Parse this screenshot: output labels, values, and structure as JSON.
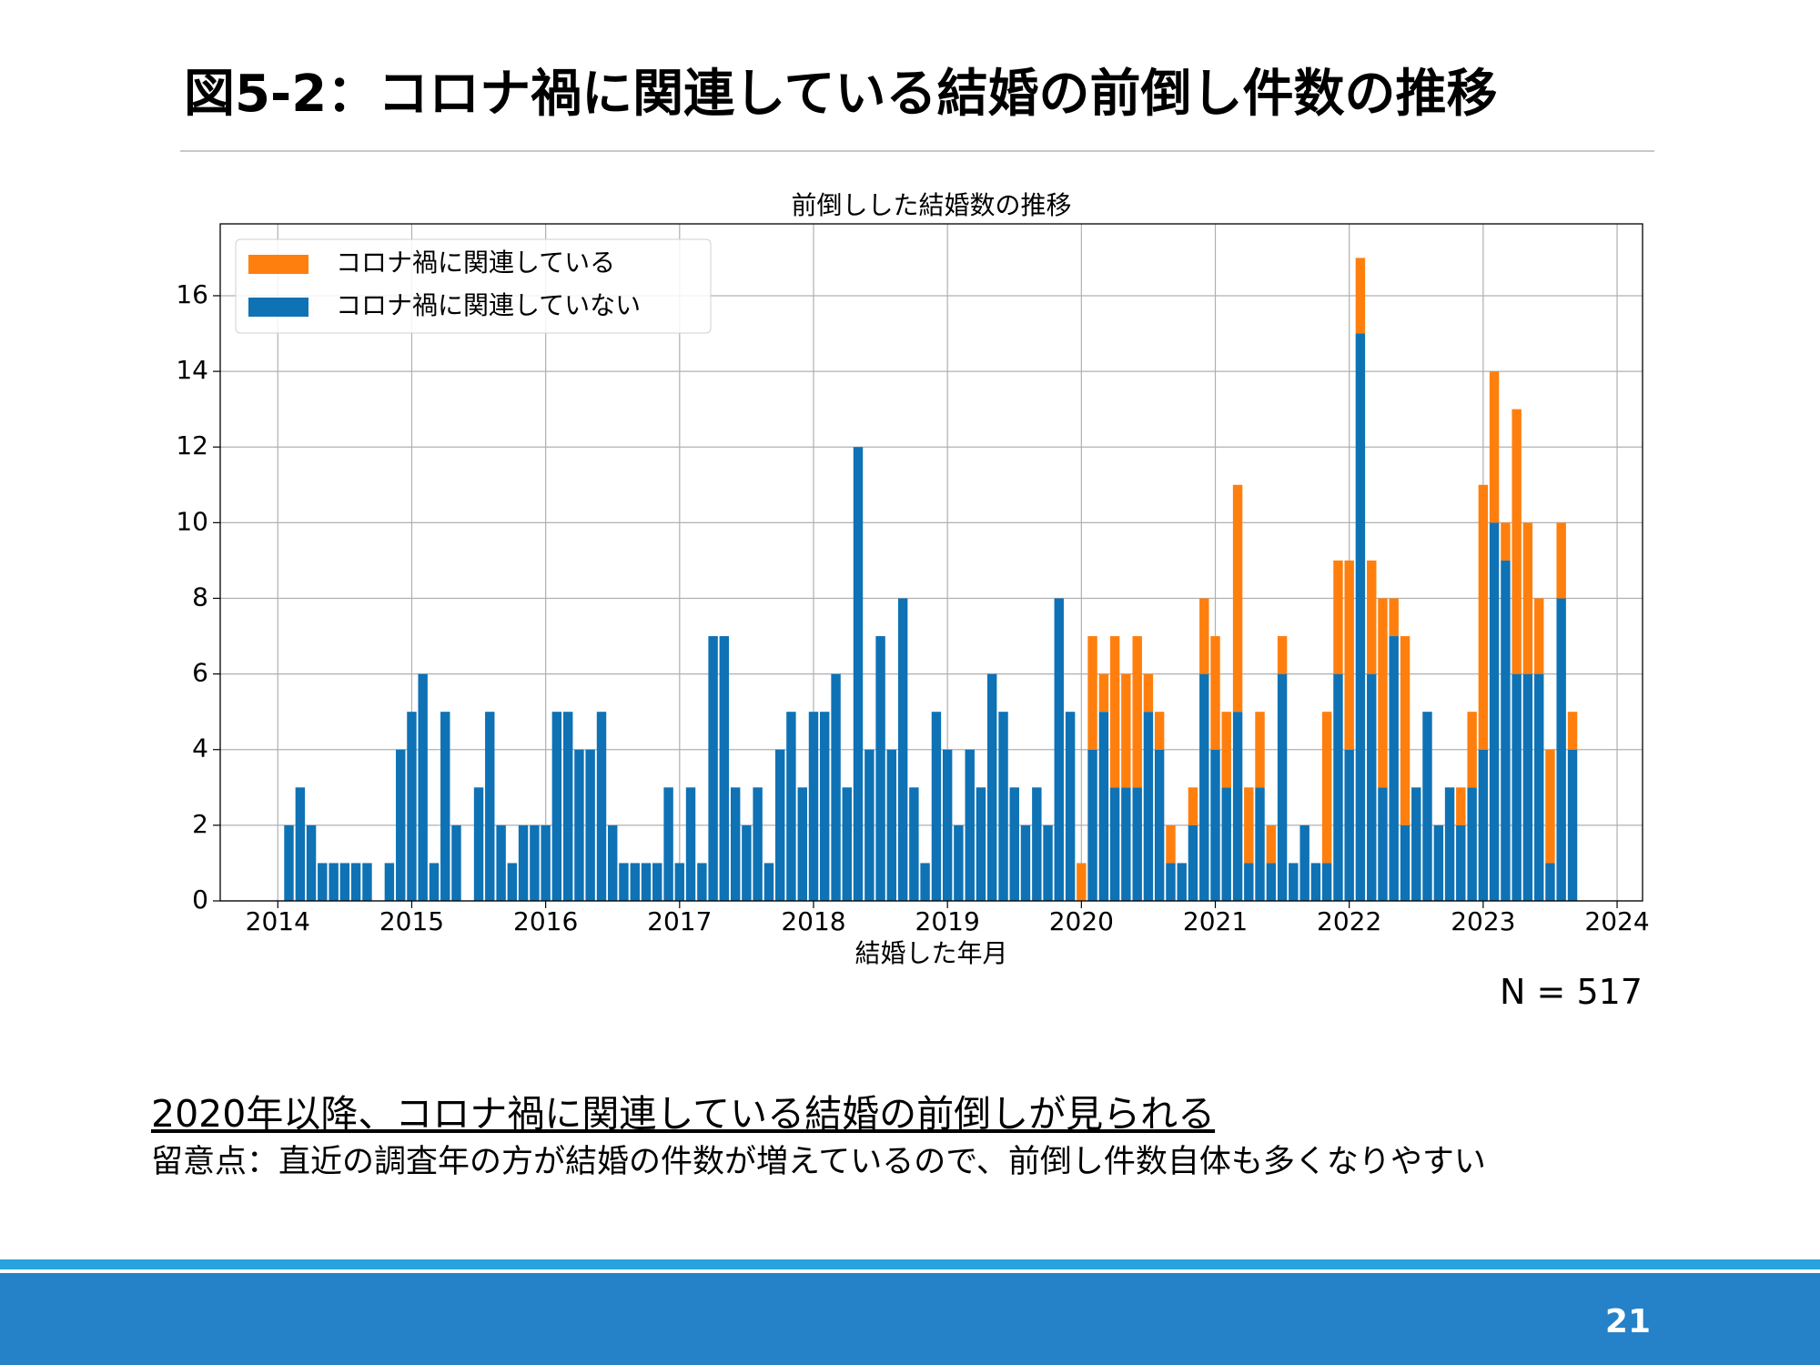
{
  "slide": {
    "title": "図5-2：コロナ禍に関連している結婚の前倒し件数の推移",
    "note": "N = 517",
    "finding": "2020年以降、コロナ禍に関連している結婚の前倒しが見られる",
    "caveat": "留意点：直近の調査年の方が結婚の件数が増えているので、前倒し件数自体も多くなりやすい",
    "page_number": "21"
  },
  "chart_data": {
    "type": "stacked_bar",
    "title": "前倒しした結婚数の推移",
    "x_label": "結婚した年月",
    "x": [
      2014.083,
      2014.167,
      2014.25,
      2014.333,
      2014.417,
      2014.5,
      2014.583,
      2014.667,
      2014.75,
      2014.833,
      2014.917,
      2015,
      2015.083,
      2015.167,
      2015.25,
      2015.333,
      2015.417,
      2015.5,
      2015.583,
      2015.667,
      2015.75,
      2015.833,
      2015.917,
      2016,
      2016.083,
      2016.167,
      2016.25,
      2016.333,
      2016.417,
      2016.5,
      2016.583,
      2016.667,
      2016.75,
      2016.833,
      2016.917,
      2017,
      2017.083,
      2017.167,
      2017.25,
      2017.333,
      2017.417,
      2017.5,
      2017.583,
      2017.667,
      2017.75,
      2017.833,
      2017.917,
      2018,
      2018.083,
      2018.167,
      2018.25,
      2018.333,
      2018.417,
      2018.5,
      2018.583,
      2018.667,
      2018.75,
      2018.833,
      2018.917,
      2019,
      2019.083,
      2019.167,
      2019.25,
      2019.333,
      2019.417,
      2019.5,
      2019.583,
      2019.667,
      2019.75,
      2019.833,
      2019.917,
      2020,
      2020.083,
      2020.167,
      2020.25,
      2020.333,
      2020.417,
      2020.5,
      2020.583,
      2020.667,
      2020.75,
      2020.833,
      2020.917,
      2021,
      2021.083,
      2021.167,
      2021.25,
      2021.333,
      2021.417,
      2021.5,
      2021.583,
      2021.667,
      2021.75,
      2021.833,
      2021.917,
      2022,
      2022.083,
      2022.167,
      2022.25,
      2022.333,
      2022.417,
      2022.5,
      2022.583,
      2022.667,
      2022.75,
      2022.833,
      2022.917,
      2023,
      2023.083,
      2023.167,
      2023.25,
      2023.333,
      2023.417,
      2023.5,
      2023.583,
      2023.667
    ],
    "series": [
      {
        "name": "コロナ禍に関連していない",
        "color": "#0e72b5",
        "values": [
          2,
          3,
          2,
          1,
          1,
          1,
          1,
          1,
          0,
          1,
          4,
          5,
          6,
          1,
          5,
          2,
          0,
          3,
          5,
          2,
          1,
          2,
          2,
          2,
          5,
          5,
          4,
          4,
          5,
          2,
          1,
          1,
          1,
          1,
          3,
          1,
          3,
          1,
          7,
          7,
          3,
          2,
          3,
          1,
          4,
          5,
          3,
          5,
          5,
          6,
          3,
          12,
          4,
          7,
          4,
          8,
          3,
          1,
          5,
          4,
          2,
          4,
          3,
          6,
          5,
          3,
          2,
          3,
          2,
          8,
          5,
          0,
          4,
          5,
          3,
          3,
          3,
          5,
          4,
          1,
          1,
          2,
          6,
          4,
          3,
          5,
          1,
          3,
          1,
          6,
          1,
          2,
          1,
          1,
          6,
          4,
          15,
          6,
          3,
          7,
          2,
          3,
          5,
          2,
          3,
          2,
          3,
          4,
          10,
          9,
          6,
          6,
          6,
          1,
          8,
          4
        ]
      },
      {
        "name": "コロナ禍に関連している",
        "color": "#ff7f0e",
        "values": [
          0,
          0,
          0,
          0,
          0,
          0,
          0,
          0,
          0,
          0,
          0,
          0,
          0,
          0,
          0,
          0,
          0,
          0,
          0,
          0,
          0,
          0,
          0,
          0,
          0,
          0,
          0,
          0,
          0,
          0,
          0,
          0,
          0,
          0,
          0,
          0,
          0,
          0,
          0,
          0,
          0,
          0,
          0,
          0,
          0,
          0,
          0,
          0,
          0,
          0,
          0,
          0,
          0,
          0,
          0,
          0,
          0,
          0,
          0,
          0,
          0,
          0,
          0,
          0,
          0,
          0,
          0,
          0,
          0,
          0,
          0,
          1,
          3,
          1,
          4,
          3,
          4,
          1,
          1,
          1,
          0,
          1,
          2,
          3,
          2,
          6,
          2,
          2,
          1,
          1,
          0,
          0,
          0,
          4,
          3,
          5,
          2,
          3,
          5,
          1,
          5,
          0,
          0,
          0,
          0,
          1,
          2,
          7,
          4,
          1,
          7,
          4,
          2,
          3,
          2,
          1
        ]
      }
    ],
    "xlim": [
      2013.57,
      2024.19
    ],
    "xticks": [
      2014,
      2015,
      2016,
      2017,
      2018,
      2019,
      2020,
      2021,
      2022,
      2023,
      2024
    ],
    "ylim": [
      0,
      17.9
    ],
    "yticks": [
      0,
      2,
      4,
      6,
      8,
      10,
      12,
      14,
      16
    ],
    "grid": true,
    "legend": "upper left"
  }
}
